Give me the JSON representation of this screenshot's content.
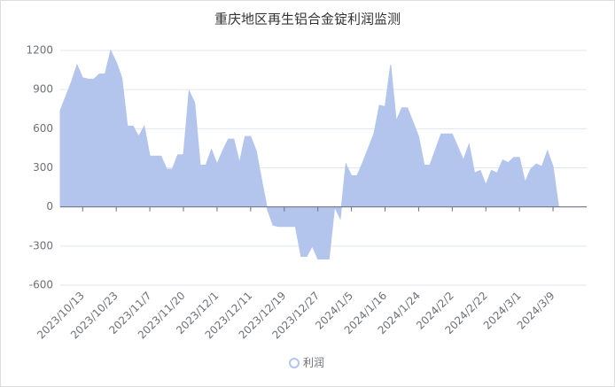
{
  "chart_data": {
    "type": "area",
    "title": "重庆地区再生铝合金锭利润监测",
    "categories": [
      null,
      null,
      null,
      null,
      "2023/10/13",
      null,
      null,
      null,
      null,
      null,
      "2023/10/23",
      null,
      null,
      null,
      null,
      null,
      "2023/11/7",
      null,
      null,
      null,
      null,
      null,
      "2023/11/20",
      null,
      null,
      null,
      null,
      null,
      "2023/12/1",
      null,
      null,
      null,
      null,
      null,
      "2023/12/11",
      null,
      null,
      null,
      null,
      null,
      "2023/12/19",
      null,
      null,
      null,
      null,
      null,
      "2023/12/27",
      null,
      null,
      null,
      null,
      null,
      "2024/1/5",
      null,
      null,
      null,
      null,
      null,
      "2024/1/16",
      null,
      null,
      null,
      null,
      null,
      "2024/1/24",
      null,
      null,
      null,
      null,
      null,
      "2024/2/2",
      null,
      null,
      null,
      null,
      null,
      "2024/2/22",
      null,
      null,
      null,
      null,
      null,
      "2024/3/1",
      null,
      null,
      null,
      null,
      null,
      "2024/3/9",
      null,
      null,
      null,
      null,
      null,
      null
    ],
    "series": [
      {
        "name": "利润",
        "color": "#b3c5ec",
        "values": [
          740,
          850,
          960,
          1090,
          990,
          980,
          980,
          1020,
          1020,
          1200,
          1110,
          990,
          620,
          620,
          540,
          620,
          390,
          390,
          390,
          290,
          290,
          400,
          400,
          890,
          800,
          320,
          320,
          440,
          330,
          430,
          520,
          520,
          340,
          540,
          540,
          430,
          200,
          -20,
          -140,
          -150,
          -150,
          -150,
          -150,
          -380,
          -380,
          -300,
          -400,
          -400,
          -400,
          0,
          -90,
          330,
          240,
          240,
          340,
          450,
          560,
          780,
          770,
          1090,
          660,
          760,
          760,
          650,
          540,
          320,
          320,
          440,
          560,
          560,
          560,
          460,
          360,
          480,
          260,
          280,
          170,
          280,
          260,
          360,
          340,
          380,
          380,
          190,
          290,
          330,
          310,
          430,
          310,
          0,
          0,
          0,
          0,
          0,
          0
        ]
      }
    ],
    "ylim": [
      -600,
      1200
    ],
    "yticks": [
      -600,
      -300,
      0,
      300,
      600,
      900,
      1200
    ],
    "grid": true,
    "legend": "bottom"
  }
}
